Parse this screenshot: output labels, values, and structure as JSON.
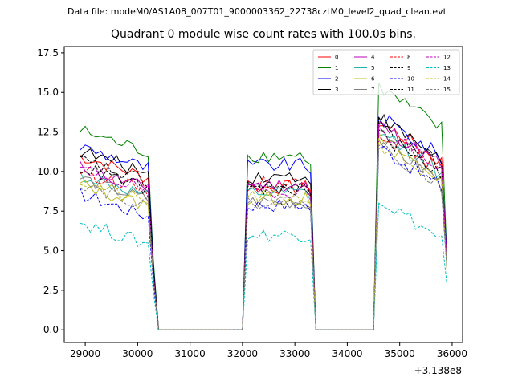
{
  "header": {
    "data_file": "Data file: modeM0/AS1A08_007T01_9000003362_22738cztM0_level2_quad_clean.evt"
  },
  "chart_data": {
    "type": "line",
    "title": "Quadrant 0 module wise count rates with 100.0s bins.",
    "xlabel": "",
    "ylabel": "",
    "x_offset_label": "+3.138e8",
    "xlim": [
      28600,
      36200
    ],
    "ylim": [
      -0.8,
      17.9
    ],
    "x_ticks": [
      29000,
      30000,
      31000,
      32000,
      33000,
      34000,
      35000,
      36000
    ],
    "x_tick_labels": [
      "29000",
      "30000",
      "31000",
      "32000",
      "33000",
      "34000",
      "35000",
      "36000"
    ],
    "y_ticks": [
      0.0,
      2.5,
      5.0,
      7.5,
      10.0,
      12.5,
      15.0,
      17.5
    ],
    "y_tick_labels": [
      "0.0",
      "2.5",
      "5.0",
      "7.5",
      "10.0",
      "12.5",
      "15.0",
      "17.5"
    ],
    "legend_position": "top-right",
    "legend_columns": 4,
    "gap_segments": [
      {
        "x": [
          30300,
          30400,
          32000,
          32100
        ]
      },
      {
        "x": [
          33300,
          33400,
          34500,
          34600
        ]
      }
    ],
    "segments_x": [
      [
        28900,
        29000,
        29100,
        29200,
        29300,
        29400,
        29500,
        29600,
        29700,
        29800,
        29900,
        30000,
        30100,
        30200,
        30300,
        30400
      ],
      [
        32000,
        32100,
        32200,
        32300,
        32400,
        32500,
        32600,
        32700,
        32800,
        32900,
        33000,
        33100,
        33200,
        33300,
        33400
      ],
      [
        34500,
        34600,
        34700,
        34800,
        34900,
        35000,
        35100,
        35200,
        35300,
        35400,
        35500,
        35600,
        35700,
        35800,
        35900
      ]
    ],
    "series": [
      {
        "name": "0",
        "color": "#ff0000",
        "dash": "solid",
        "level": [
          11.0,
          9.0,
          13.2
        ],
        "end": 4.2
      },
      {
        "name": "1",
        "color": "#008000",
        "dash": "solid",
        "level": [
          12.6,
          11.0,
          15.3
        ],
        "end": 4.6
      },
      {
        "name": "2",
        "color": "#0000ff",
        "dash": "solid",
        "level": [
          11.6,
          10.4,
          13.5
        ],
        "end": 4.8
      },
      {
        "name": "3",
        "color": "#000000",
        "dash": "solid",
        "level": [
          11.3,
          9.7,
          13.4
        ],
        "end": 4.3
      },
      {
        "name": "4",
        "color": "#bf00bf",
        "dash": "solid",
        "level": [
          10.3,
          9.2,
          13.0
        ],
        "end": 4.3
      },
      {
        "name": "5",
        "color": "#20b2aa",
        "dash": "solid",
        "level": [
          9.8,
          8.6,
          12.5
        ],
        "end": 4.0
      },
      {
        "name": "6",
        "color": "#bcbd22",
        "dash": "solid",
        "level": [
          9.2,
          8.3,
          12.1
        ],
        "end": 3.9
      },
      {
        "name": "7",
        "color": "#7f7f7f",
        "dash": "solid",
        "level": [
          9.6,
          8.1,
          12.0
        ],
        "end": 4.0
      },
      {
        "name": "8",
        "color": "#ff0000",
        "dash": "dashed",
        "level": [
          10.1,
          9.3,
          12.6
        ],
        "end": 4.2
      },
      {
        "name": "9",
        "color": "#000000",
        "dash": "dashed",
        "level": [
          10.3,
          8.9,
          12.4
        ],
        "end": 4.1
      },
      {
        "name": "10",
        "color": "#0000ff",
        "dash": "dashed",
        "level": [
          8.6,
          7.9,
          11.6
        ],
        "end": 4.0
      },
      {
        "name": "11",
        "color": "#000000",
        "dash": "dashed",
        "level": [
          10.7,
          9.0,
          13.0
        ],
        "end": 4.2
      },
      {
        "name": "12",
        "color": "#bf00bf",
        "dash": "dashed",
        "level": [
          10.2,
          8.8,
          12.8
        ],
        "end": 4.2
      },
      {
        "name": "13",
        "color": "#00bfbf",
        "dash": "dashed",
        "level": [
          6.8,
          6.0,
          8.3
        ],
        "end": 2.9
      },
      {
        "name": "14",
        "color": "#bcbd22",
        "dash": "dashed",
        "level": [
          9.4,
          8.4,
          11.8
        ],
        "end": 3.9
      },
      {
        "name": "15",
        "color": "#7f7f7f",
        "dash": "dashed",
        "level": [
          9.3,
          8.1,
          11.7
        ],
        "end": 4.0
      }
    ]
  }
}
